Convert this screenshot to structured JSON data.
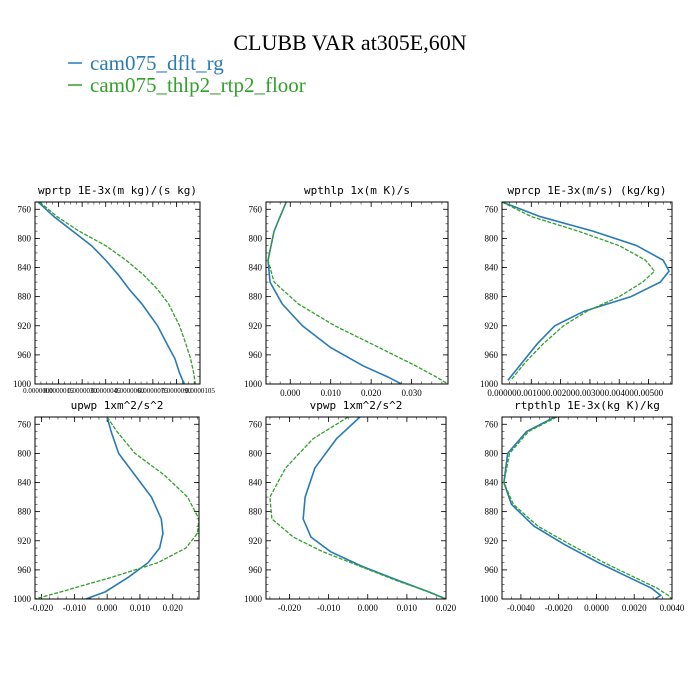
{
  "title": "CLUBB VAR at305E,60N",
  "legend": [
    {
      "label": "cam075_dflt_rg",
      "color": "#2a7ab5"
    },
    {
      "label": "cam075_thlp2_rtp2_floor",
      "color": "#33a02c"
    }
  ],
  "chart_data": [
    {
      "type": "line",
      "title": "wprtp  1E-3x(m kg)/(s kg)",
      "xlim": [
        0.0,
        1.05e-05
      ],
      "ylim": [
        1000,
        750
      ],
      "yticks": [
        760,
        800,
        840,
        880,
        920,
        960,
        1000
      ],
      "xticks": [
        0.0,
        1.5e-06,
        3e-06,
        4.5e-06,
        6e-06,
        7.5e-06,
        9e-06,
        1.05e-05
      ],
      "xtick_labels": [
        "0.0000000",
        "0.0000015",
        "0.0000030",
        "0.0000045",
        "0.0000060",
        "0.0000075",
        "0.0000090",
        "0.0000105"
      ],
      "series": [
        {
          "name": "cam075_dflt_rg",
          "x": [
            2e-07,
            1.2e-06,
            2.4e-06,
            3.6e-06,
            4.5e-06,
            5.3e-06,
            6e-06,
            6.8e-06,
            7.8e-06,
            8.4e-06,
            8.9e-06,
            9.2e-06,
            9.5e-06
          ],
          "y": [
            750,
            770,
            790,
            810,
            830,
            850,
            870,
            890,
            920,
            945,
            965,
            985,
            1000
          ]
        },
        {
          "name": "cam075_thlp2_rtp2_floor",
          "x": [
            3e-07,
            1.4e-06,
            2.8e-06,
            4.5e-06,
            5.8e-06,
            6.9e-06,
            7.8e-06,
            8.5e-06,
            9.2e-06,
            9.6e-06,
            9.9e-06,
            1.01e-05,
            1.02e-05
          ],
          "y": [
            750,
            770,
            790,
            810,
            830,
            850,
            870,
            890,
            920,
            945,
            965,
            985,
            1000
          ]
        }
      ]
    },
    {
      "type": "line",
      "title": "wpthlp  1x(m K)/s",
      "xlim": [
        -0.006,
        0.039
      ],
      "ylim": [
        1000,
        750
      ],
      "yticks": [
        760,
        800,
        840,
        880,
        920,
        960,
        1000
      ],
      "xticks": [
        0.0,
        0.01,
        0.02,
        0.03
      ],
      "xtick_labels": [
        "0.000",
        "0.010",
        "0.020",
        "0.030"
      ],
      "series": [
        {
          "name": "cam075_dflt_rg",
          "x": [
            -0.001,
            -0.004,
            -0.0055,
            -0.005,
            -0.002,
            0.003,
            0.01,
            0.018,
            0.024,
            0.0275
          ],
          "y": [
            750,
            790,
            830,
            860,
            890,
            920,
            950,
            975,
            990,
            1000
          ]
        },
        {
          "name": "cam075_thlp2_rtp2_floor",
          "x": [
            -0.001,
            -0.004,
            -0.0055,
            -0.004,
            0.002,
            0.011,
            0.022,
            0.031,
            0.036,
            0.039
          ],
          "y": [
            750,
            790,
            830,
            860,
            890,
            920,
            950,
            975,
            990,
            1000
          ]
        }
      ]
    },
    {
      "type": "line",
      "title": "wprcp  1E-3x(m/s) (kg/kg)",
      "xlim": [
        0.0,
        0.0058
      ],
      "ylim": [
        1000,
        750
      ],
      "yticks": [
        760,
        800,
        840,
        880,
        920,
        960,
        1000
      ],
      "xticks": [
        0.0,
        0.001,
        0.002,
        0.003,
        0.004,
        0.005
      ],
      "xtick_labels": [
        "0.00000",
        "0.00100",
        "0.00200",
        "0.00300",
        "0.00400",
        "0.00500"
      ],
      "series": [
        {
          "name": "cam075_dflt_rg",
          "x": [
            0.0,
            0.0013,
            0.0031,
            0.0046,
            0.0055,
            0.0057,
            0.0054,
            0.0044,
            0.0028,
            0.0018,
            0.0012,
            0.0007,
            0.0002
          ],
          "y": [
            750,
            770,
            790,
            810,
            830,
            845,
            860,
            880,
            900,
            920,
            945,
            970,
            995
          ]
        },
        {
          "name": "cam075_thlp2_rtp2_floor",
          "x": [
            0.0,
            0.001,
            0.0026,
            0.004,
            0.0049,
            0.0052,
            0.0048,
            0.004,
            0.0029,
            0.0021,
            0.0014,
            0.0008,
            0.0003
          ],
          "y": [
            750,
            770,
            790,
            810,
            830,
            845,
            860,
            880,
            900,
            920,
            945,
            970,
            995
          ]
        }
      ]
    },
    {
      "type": "line",
      "title": "upwp  1xm^2/s^2",
      "xlim": [
        -0.022,
        0.028
      ],
      "ylim": [
        1000,
        750
      ],
      "yticks": [
        760,
        800,
        840,
        880,
        920,
        960,
        1000
      ],
      "xticks": [
        -0.02,
        -0.01,
        0.0,
        0.01,
        0.02
      ],
      "xtick_labels": [
        "-0.020",
        "-0.010",
        "0.000",
        "0.010",
        "0.020"
      ],
      "series": [
        {
          "name": "cam075_dflt_rg",
          "x": [
            0.0,
            0.0012,
            0.0035,
            0.0085,
            0.0135,
            0.0165,
            0.017,
            0.016,
            0.0125,
            0.0065,
            -0.0005,
            -0.0065
          ],
          "y": [
            750,
            770,
            800,
            830,
            860,
            890,
            910,
            930,
            950,
            970,
            990,
            1000
          ]
        },
        {
          "name": "cam075_thlp2_rtp2_floor",
          "x": [
            0.0,
            0.003,
            0.0085,
            0.0175,
            0.0245,
            0.028,
            0.0275,
            0.024,
            0.0155,
            0.0015,
            -0.014,
            -0.022
          ],
          "y": [
            750,
            770,
            800,
            830,
            860,
            890,
            910,
            930,
            950,
            970,
            990,
            1000
          ]
        }
      ]
    },
    {
      "type": "line",
      "title": "vpwp  1xm^2/s^2",
      "xlim": [
        -0.026,
        0.02
      ],
      "ylim": [
        1000,
        750
      ],
      "yticks": [
        760,
        800,
        840,
        880,
        920,
        960,
        1000
      ],
      "xticks": [
        -0.02,
        -0.01,
        0.0,
        0.01,
        0.02
      ],
      "xtick_labels": [
        "-0.020",
        "-0.010",
        "0.000",
        "0.010",
        "0.020"
      ],
      "series": [
        {
          "name": "cam075_dflt_rg",
          "x": [
            -0.002,
            -0.008,
            -0.0135,
            -0.016,
            -0.0165,
            -0.0145,
            -0.0095,
            -0.0015,
            0.008,
            0.0155,
            0.02
          ],
          "y": [
            750,
            780,
            820,
            860,
            890,
            915,
            935,
            955,
            975,
            990,
            1000
          ]
        },
        {
          "name": "cam075_thlp2_rtp2_floor",
          "x": [
            -0.005,
            -0.014,
            -0.021,
            -0.025,
            -0.0245,
            -0.019,
            -0.0115,
            -0.002,
            0.0075,
            0.0155,
            0.02
          ],
          "y": [
            750,
            780,
            820,
            860,
            890,
            915,
            935,
            955,
            975,
            990,
            1000
          ]
        }
      ]
    },
    {
      "type": "line",
      "title": "rtpthlp  1E-3x(kg K)/kg",
      "xlim": [
        -0.005,
        0.004
      ],
      "ylim": [
        1000,
        750
      ],
      "yticks": [
        760,
        800,
        840,
        880,
        920,
        960,
        1000
      ],
      "xticks": [
        -0.004,
        -0.002,
        0.0,
        0.002,
        0.004
      ],
      "xtick_labels": [
        "-0.0040",
        "-0.0020",
        "0.0000",
        "0.0020",
        "0.0040"
      ],
      "series": [
        {
          "name": "cam075_dflt_rg",
          "x": [
            -0.0022,
            -0.0037,
            -0.0047,
            -0.0049,
            -0.0045,
            -0.0033,
            -0.0017,
            0.0001,
            0.0017,
            0.0029,
            0.0034,
            0.0031
          ],
          "y": [
            750,
            770,
            800,
            840,
            870,
            900,
            925,
            950,
            970,
            985,
            995,
            1000
          ]
        },
        {
          "name": "cam075_thlp2_rtp2_floor",
          "x": [
            -0.0021,
            -0.0036,
            -0.0046,
            -0.0049,
            -0.0044,
            -0.0031,
            -0.0014,
            0.0004,
            0.002,
            0.0032,
            0.0038,
            0.004
          ],
          "y": [
            750,
            770,
            800,
            840,
            870,
            900,
            925,
            950,
            970,
            985,
            995,
            1000
          ]
        }
      ]
    }
  ]
}
